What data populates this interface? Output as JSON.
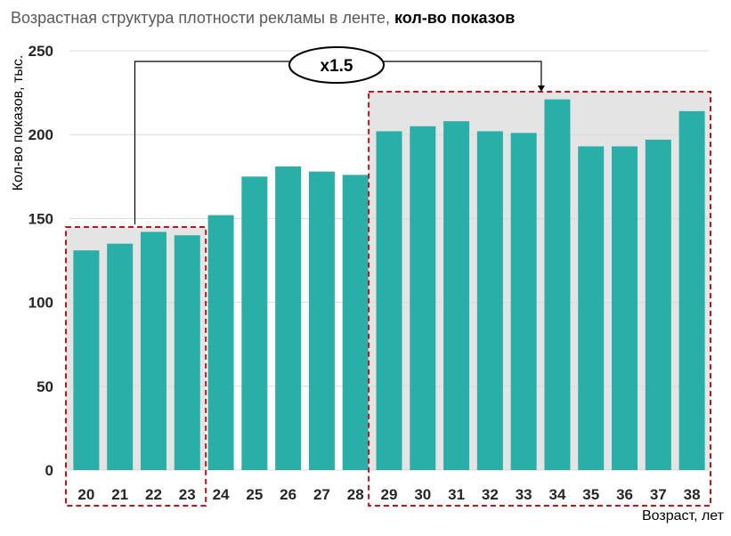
{
  "title": {
    "normal": "Возрастная структура плотности рекламы в ленте,",
    "bold": "кол-во показов"
  },
  "colors": {
    "bar": "#2aafa8",
    "highlight_bg": "#e4e4e4",
    "box_border": "#c0141c",
    "grid": "#d9d9d9"
  },
  "chart_data": {
    "type": "bar",
    "title": "Возрастная структура плотности рекламы в ленте, кол-во показов",
    "xlabel": "Возраст, лет",
    "ylabel": "Кол-во показов, тыс.",
    "ylim": [
      0,
      250
    ],
    "yticks": [
      "0",
      "50",
      "100",
      "150",
      "200",
      "250"
    ],
    "grid": true,
    "categories": [
      "20",
      "21",
      "22",
      "23",
      "24",
      "25",
      "26",
      "27",
      "28",
      "29",
      "30",
      "31",
      "32",
      "33",
      "34",
      "35",
      "36",
      "37",
      "38"
    ],
    "values": [
      131,
      135,
      142,
      140,
      152,
      175,
      181,
      178,
      176,
      202,
      205,
      208,
      202,
      201,
      221,
      193,
      193,
      197,
      214
    ],
    "highlight_groups": [
      {
        "from": "20",
        "to": "23"
      },
      {
        "from": "29",
        "to": "38"
      }
    ],
    "annotation": {
      "text": "x1.5",
      "from": "22",
      "to": "34"
    }
  }
}
